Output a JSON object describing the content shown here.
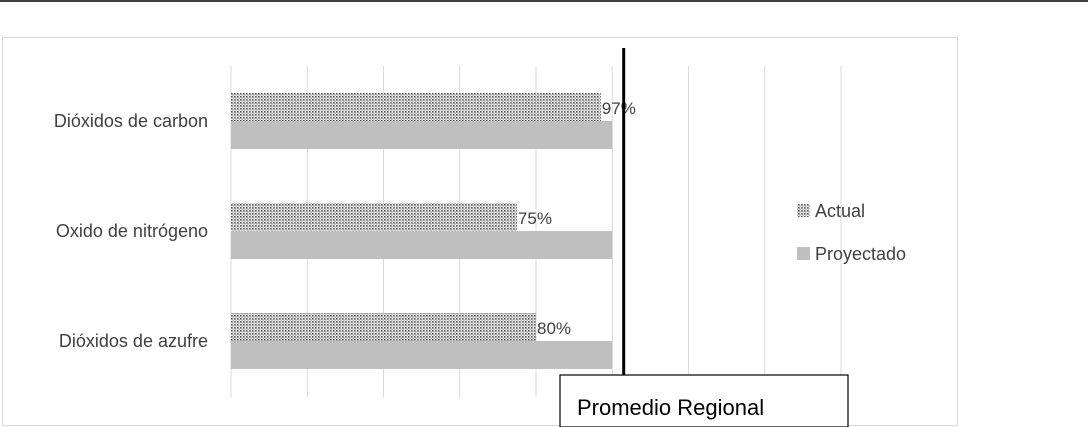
{
  "chart_data": {
    "type": "bar",
    "orientation": "horizontal",
    "categories": [
      "Dióxidos de carbon",
      "Oxido de nitrógeno",
      "Dióxidos de azufre"
    ],
    "series": [
      {
        "name": "Actual",
        "values": [
          97,
          75,
          80
        ],
        "labels": [
          "97%",
          "75%",
          "80%"
        ],
        "pattern": "dotted"
      },
      {
        "name": "Proyectado",
        "values": [
          100,
          100,
          100
        ],
        "color": "#bfbfbf"
      }
    ],
    "xlim": [
      0,
      160
    ],
    "gridlines": [
      0,
      20,
      40,
      60,
      80,
      100,
      120,
      140,
      160
    ],
    "grid": true,
    "reference_line": {
      "value": 103,
      "label": "Promedio Regional"
    },
    "legend_position": "right",
    "colors": {
      "actual_dots": "#555555",
      "proyectado": "#bfbfbf",
      "grid": "#d9d9d9",
      "reference": "#000000"
    }
  }
}
